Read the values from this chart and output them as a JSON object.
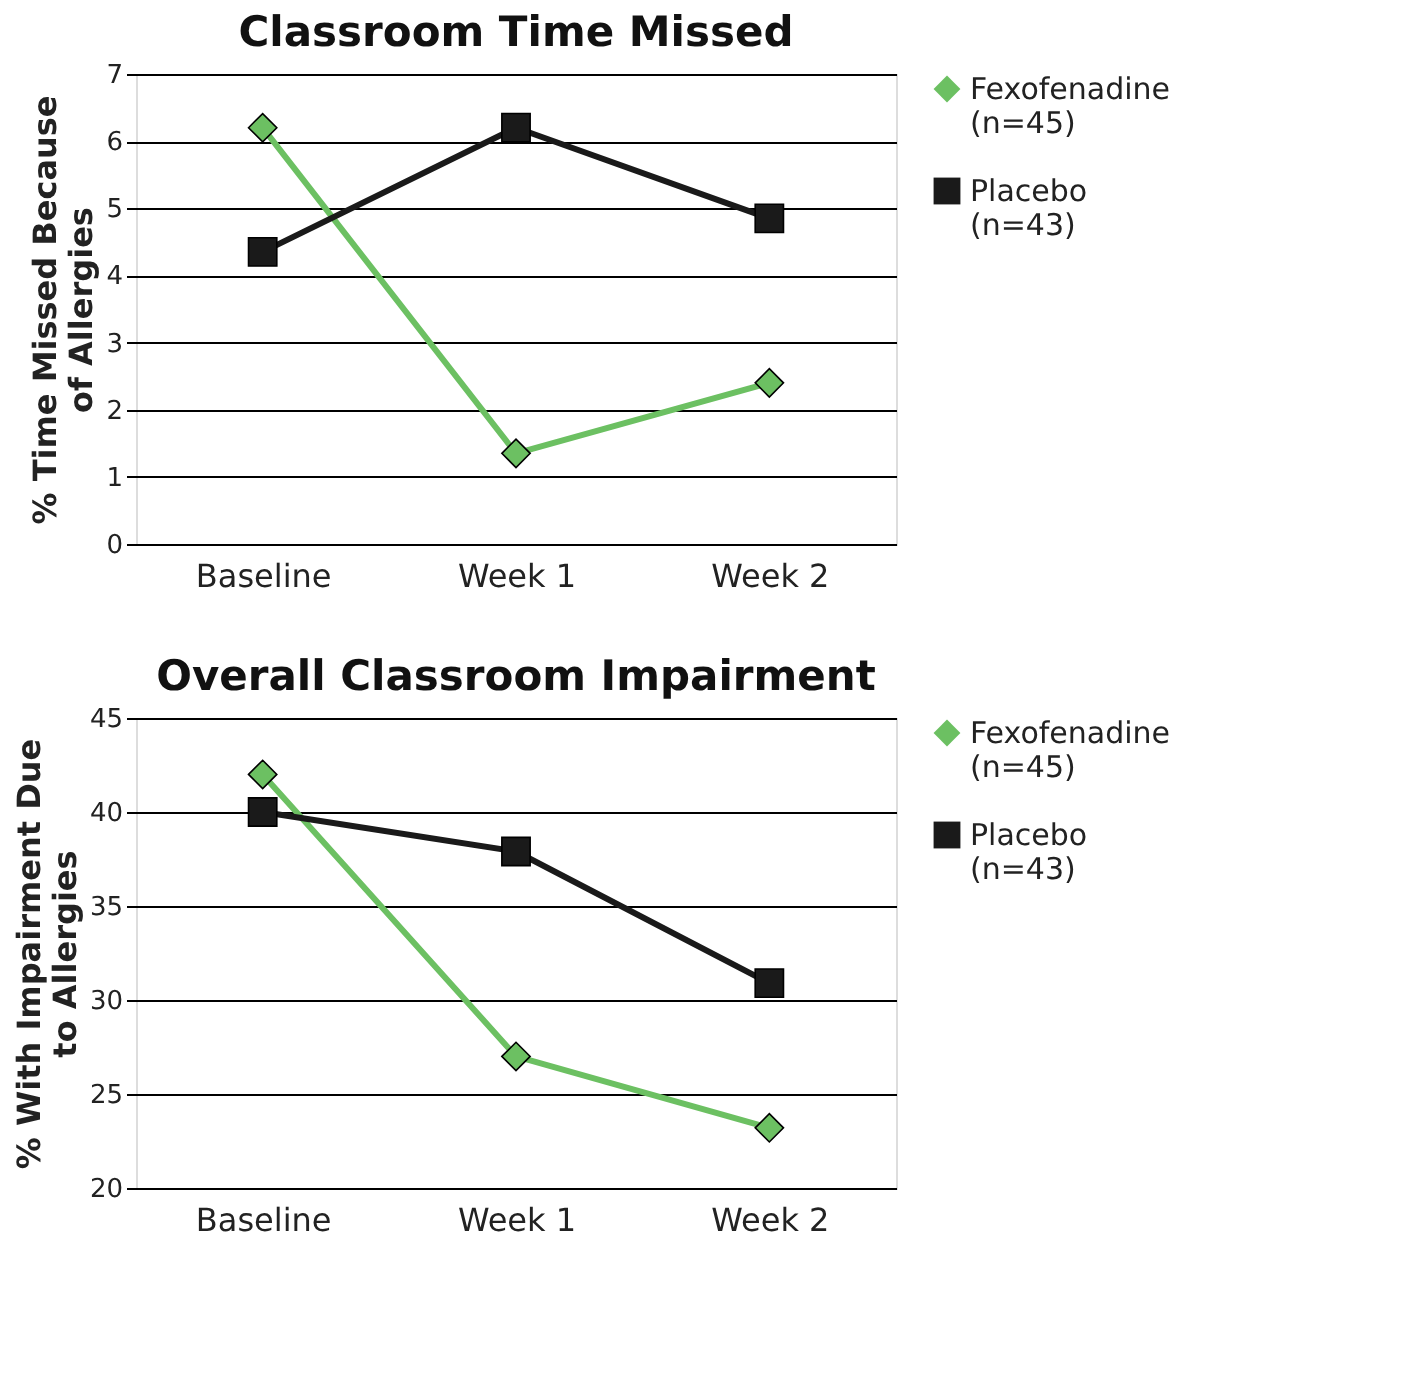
{
  "chart_data": [
    {
      "type": "line",
      "title": "Classroom Time Missed",
      "ylabel": "% Time Missed Because\nof Allergies",
      "categories": [
        "Baseline",
        "Week 1",
        "Week 2"
      ],
      "ylim": [
        0,
        7
      ],
      "yticks": [
        0,
        1,
        2,
        3,
        4,
        5,
        6,
        7
      ],
      "grid": "y",
      "legend": "right",
      "line_style": "solid",
      "series": [
        {
          "name": "Fexofenadine\n(n=45)",
          "color": "#6cc062",
          "marker": "diamond",
          "values": [
            6.2,
            1.35,
            2.4
          ]
        },
        {
          "name": "Placebo\n(n=43)",
          "color": "#1a1a1a",
          "marker": "square",
          "values": [
            4.35,
            6.2,
            4.85
          ]
        }
      ]
    },
    {
      "type": "line",
      "title": "Overall Classroom Impairment",
      "ylabel": "% With Impairment Due\nto Allergies",
      "categories": [
        "Baseline",
        "Week 1",
        "Week 2"
      ],
      "ylim": [
        20,
        45
      ],
      "yticks": [
        20,
        25,
        30,
        35,
        40,
        45
      ],
      "grid": "y",
      "legend": "right",
      "line_style": "solid",
      "series": [
        {
          "name": "Fexofenadine\n(n=45)",
          "color": "#6cc062",
          "marker": "diamond",
          "values": [
            42,
            27,
            23.2
          ]
        },
        {
          "name": "Placebo\n(n=43)",
          "color": "#1a1a1a",
          "marker": "square",
          "values": [
            40,
            37.9,
            30.9
          ]
        }
      ]
    }
  ]
}
